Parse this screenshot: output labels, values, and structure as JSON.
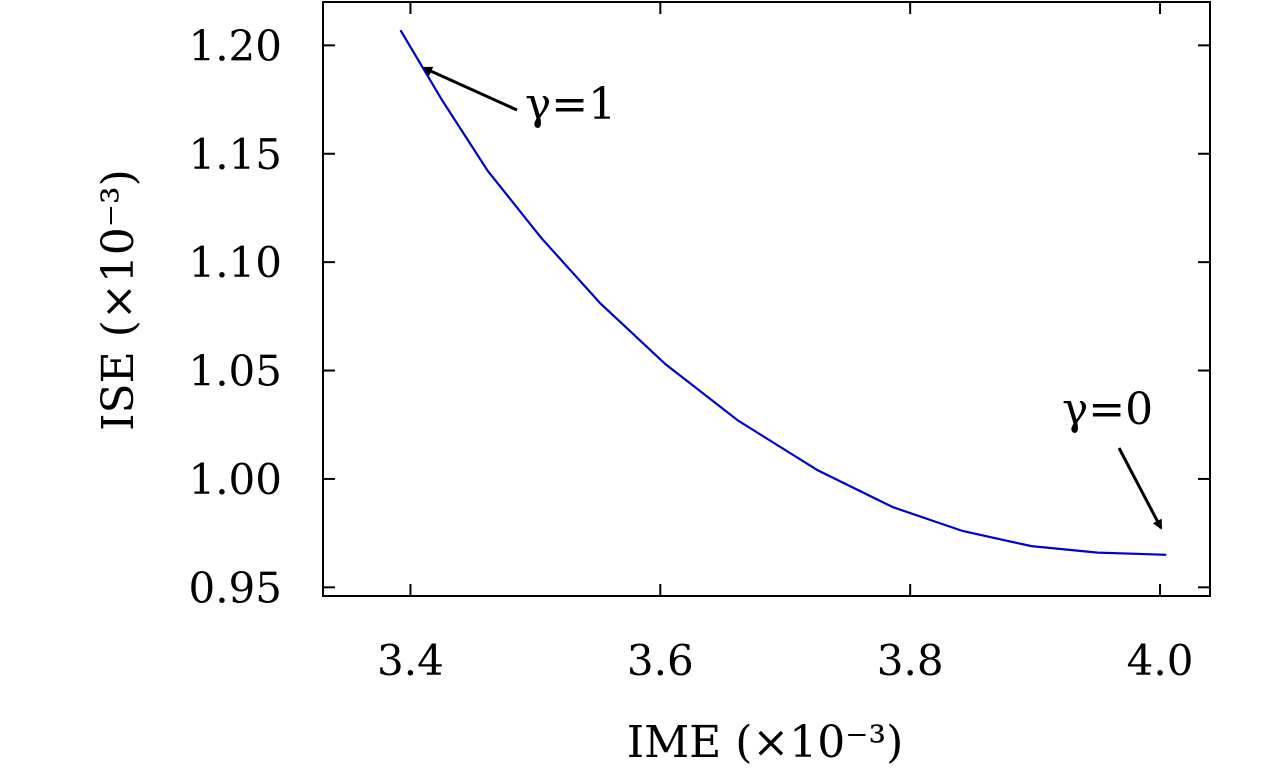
{
  "chart_data": {
    "type": "line",
    "title": "",
    "xlabel": "IME (×10⁻³)",
    "ylabel": "ISE (×10⁻³)",
    "xlim": [
      3.33,
      4.04
    ],
    "ylim": [
      0.946,
      1.22
    ],
    "xticks": [
      "3.4",
      "3.6",
      "3.8",
      "4.0"
    ],
    "yticks": [
      "0.95",
      "1.00",
      "1.05",
      "1.10",
      "1.15",
      "1.20"
    ],
    "grid": false,
    "series": [
      {
        "color": "#0000cc",
        "x": [
          3.392,
          3.425,
          3.462,
          3.505,
          3.552,
          3.604,
          3.662,
          3.726,
          3.786,
          3.842,
          3.897,
          3.95,
          4.005
        ],
        "y": [
          1.207,
          1.175,
          1.142,
          1.111,
          1.081,
          1.053,
          1.027,
          1.004,
          0.987,
          0.976,
          0.969,
          0.966,
          0.965
        ]
      }
    ],
    "annotations": [
      {
        "text": "γ=1"
      },
      {
        "text": "γ=0"
      }
    ]
  }
}
